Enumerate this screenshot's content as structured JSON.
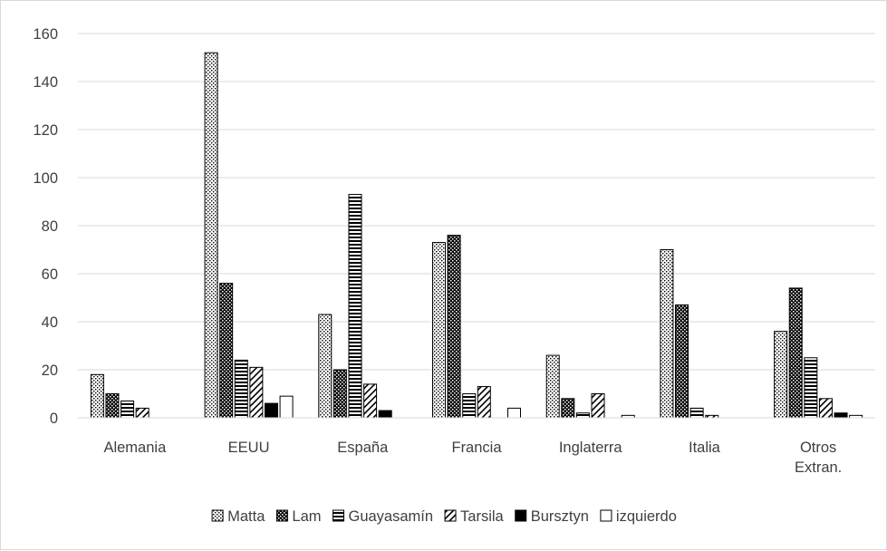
{
  "chart_data": {
    "type": "bar",
    "title": "",
    "xlabel": "",
    "ylabel": "",
    "ylim": [
      0,
      160
    ],
    "yticks": [
      0,
      20,
      40,
      60,
      80,
      100,
      120,
      140,
      160
    ],
    "grid": true,
    "legend_position": "bottom",
    "categories": [
      "Alemania",
      "EEUU",
      "España",
      "Francia",
      "Inglaterra",
      "Italia",
      "Otros Extran."
    ],
    "series": [
      {
        "name": "Matta",
        "pattern": "dots-light",
        "values": [
          18,
          152,
          43,
          73,
          26,
          70,
          36
        ]
      },
      {
        "name": "Lam",
        "pattern": "dots-dark",
        "values": [
          10,
          56,
          20,
          76,
          8,
          47,
          54
        ]
      },
      {
        "name": "Guayasamín",
        "pattern": "horizontal-lines",
        "values": [
          7,
          24,
          93,
          10,
          2,
          4,
          25
        ]
      },
      {
        "name": "Tarsila",
        "pattern": "diagonal-lines",
        "values": [
          4,
          21,
          14,
          13,
          10,
          1,
          8
        ]
      },
      {
        "name": "Bursztyn",
        "pattern": "solid-black",
        "values": [
          0,
          6,
          3,
          0,
          0,
          0,
          2
        ]
      },
      {
        "name": "izquierdo",
        "pattern": "white",
        "values": [
          0,
          9,
          0,
          4,
          1,
          0,
          1
        ]
      }
    ]
  }
}
